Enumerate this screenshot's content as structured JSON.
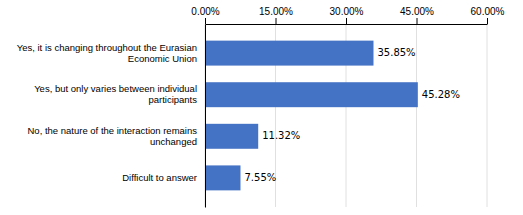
{
  "chart_data": {
    "type": "bar",
    "orientation": "horizontal",
    "categories": [
      "Difficult to answer",
      "No, the nature of the interaction remains\nunchanged",
      "Yes, but only varies between individual\nparticipants",
      "Yes, it is changing throughout the Eurasian\nEconomic Union"
    ],
    "values": [
      7.55,
      11.32,
      45.28,
      35.85
    ],
    "value_labels": [
      "7.55%",
      "11.32%",
      "45.28%",
      "35.85%"
    ],
    "data_labels": true,
    "color": "#4472C4",
    "xlim": [
      0,
      60
    ],
    "xticks": [
      {
        "value": 0,
        "label": "0.00%"
      },
      {
        "value": 15,
        "label": "15.00%"
      },
      {
        "value": 30,
        "label": "30.00%"
      },
      {
        "value": 45,
        "label": "45.00%"
      },
      {
        "value": 60,
        "label": "60.00%"
      }
    ],
    "grid": true
  }
}
